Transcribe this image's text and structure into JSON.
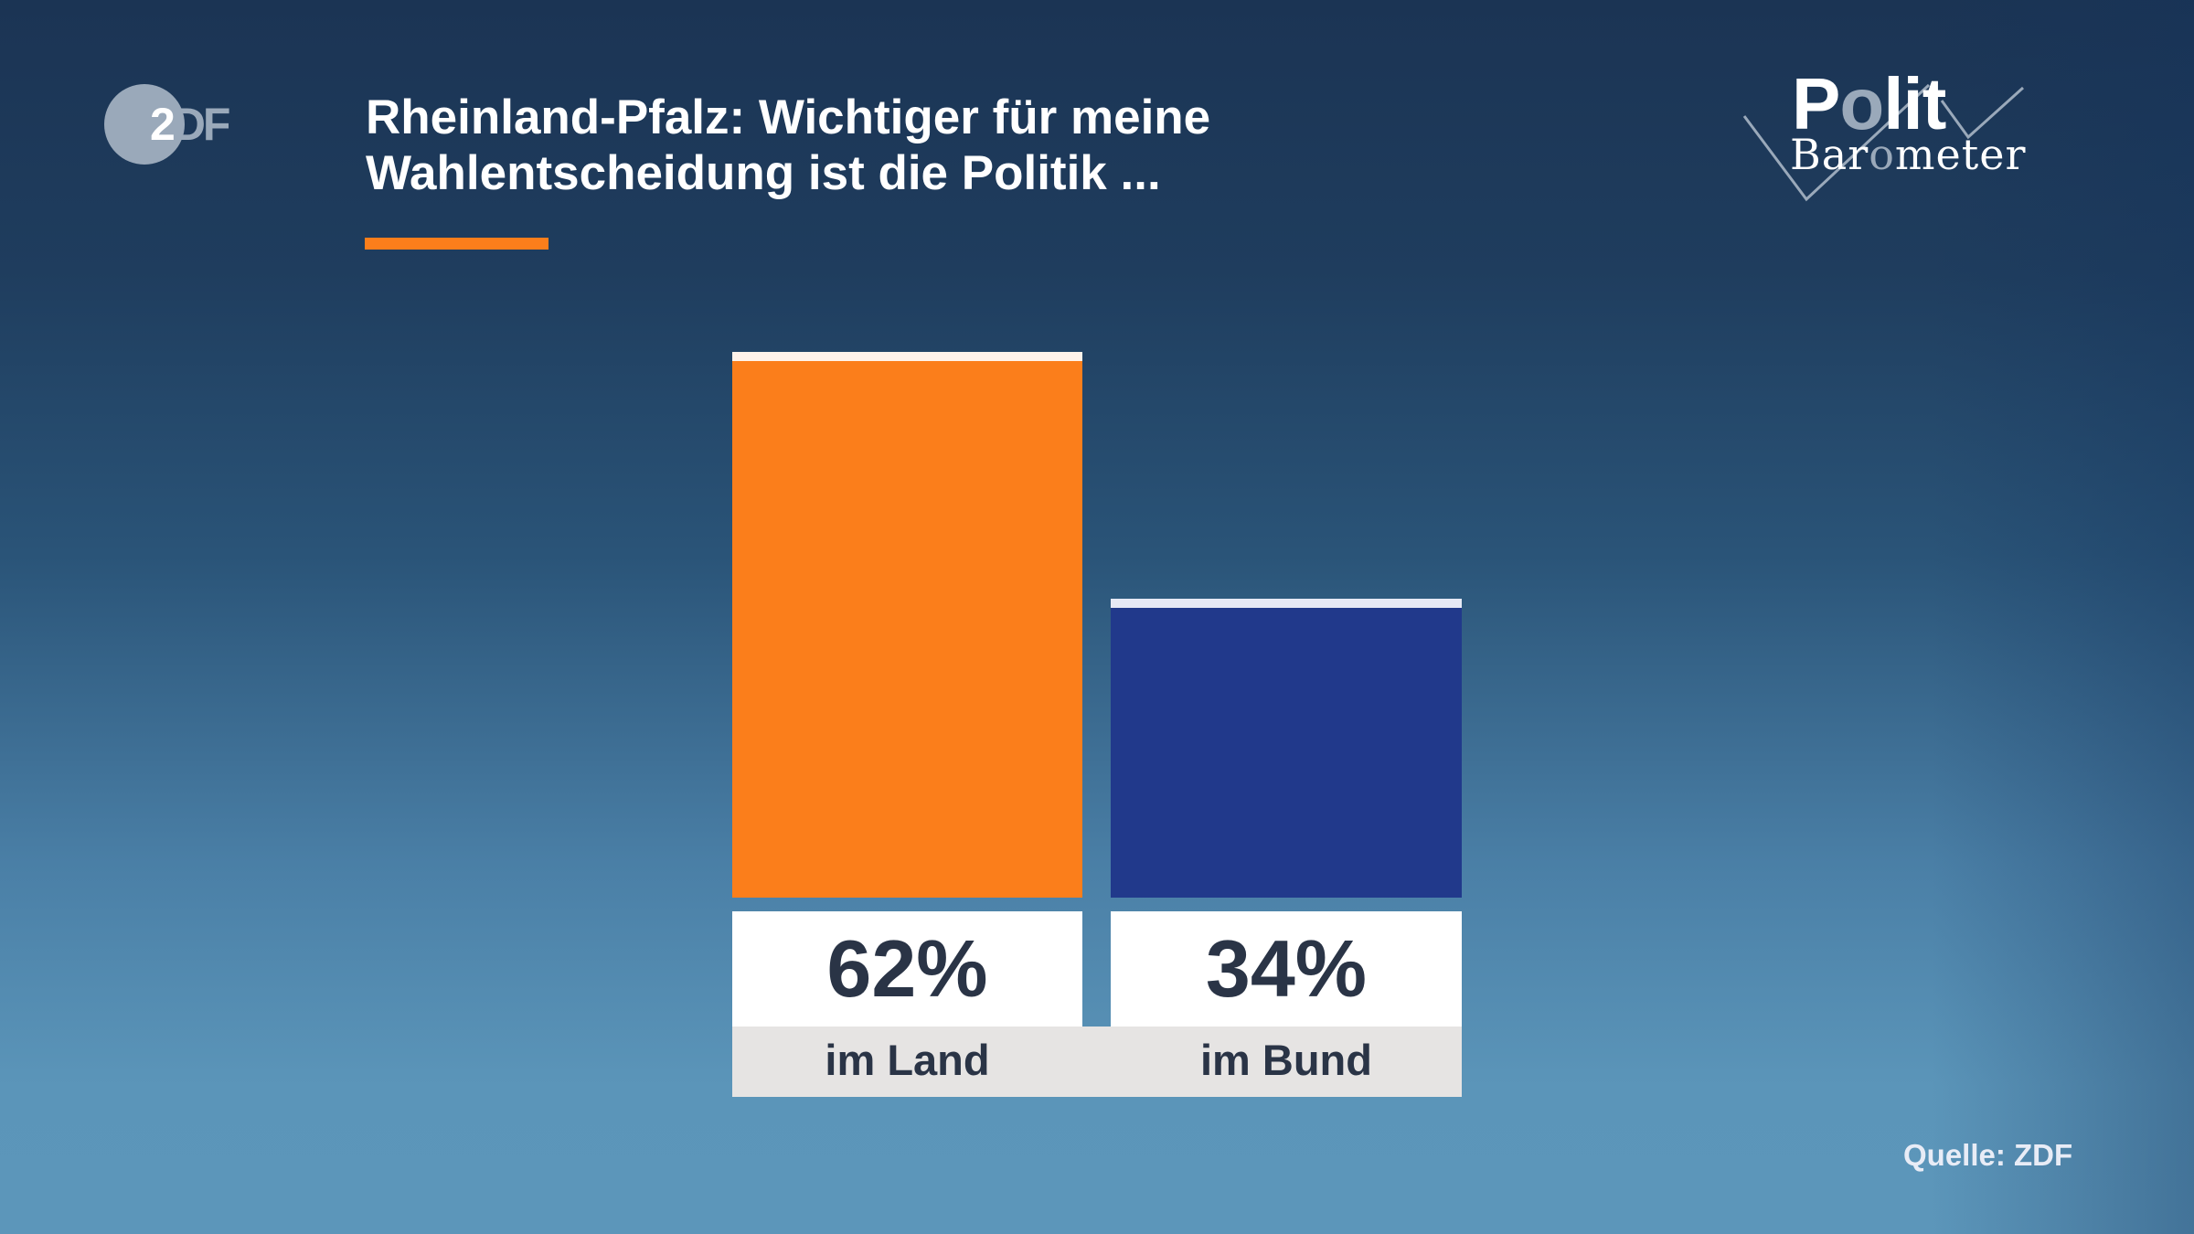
{
  "header": {
    "broadcaster_logo": "ZDF",
    "broadcaster_logo_parts": [
      "2",
      "DF"
    ],
    "title_lines": [
      "Rheinland-Pfalz: Wichtiger für meine",
      "Wahlentscheidung ist die Politik ..."
    ],
    "program_logo": {
      "line1_parts": [
        "P",
        "o",
        "lit"
      ],
      "line2_parts": [
        "Bar",
        "o",
        "meter"
      ]
    }
  },
  "footer": {
    "source": "Quelle: ZDF"
  },
  "colors": {
    "accent": "#fb7e1b",
    "bar_land": "#fb7e1b",
    "bar_bund": "#21398b",
    "cap_land": "#fff3ea",
    "cap_bund": "#e6e9f5",
    "text_dark": "#2a3446"
  },
  "chart_data": {
    "type": "bar",
    "title": "Rheinland-Pfalz: Wichtiger für meine Wahlentscheidung ist die Politik ...",
    "categories": [
      "im Land",
      "im Bund"
    ],
    "values": [
      62,
      34
    ],
    "value_labels": [
      "62%",
      "34%"
    ],
    "unit": "%",
    "xlabel": "",
    "ylabel": "",
    "ylim": [
      0,
      100
    ],
    "grid": false,
    "legend": null,
    "source": "Quelle: ZDF",
    "bar_colors": [
      "#fb7e1b",
      "#21398b"
    ]
  }
}
